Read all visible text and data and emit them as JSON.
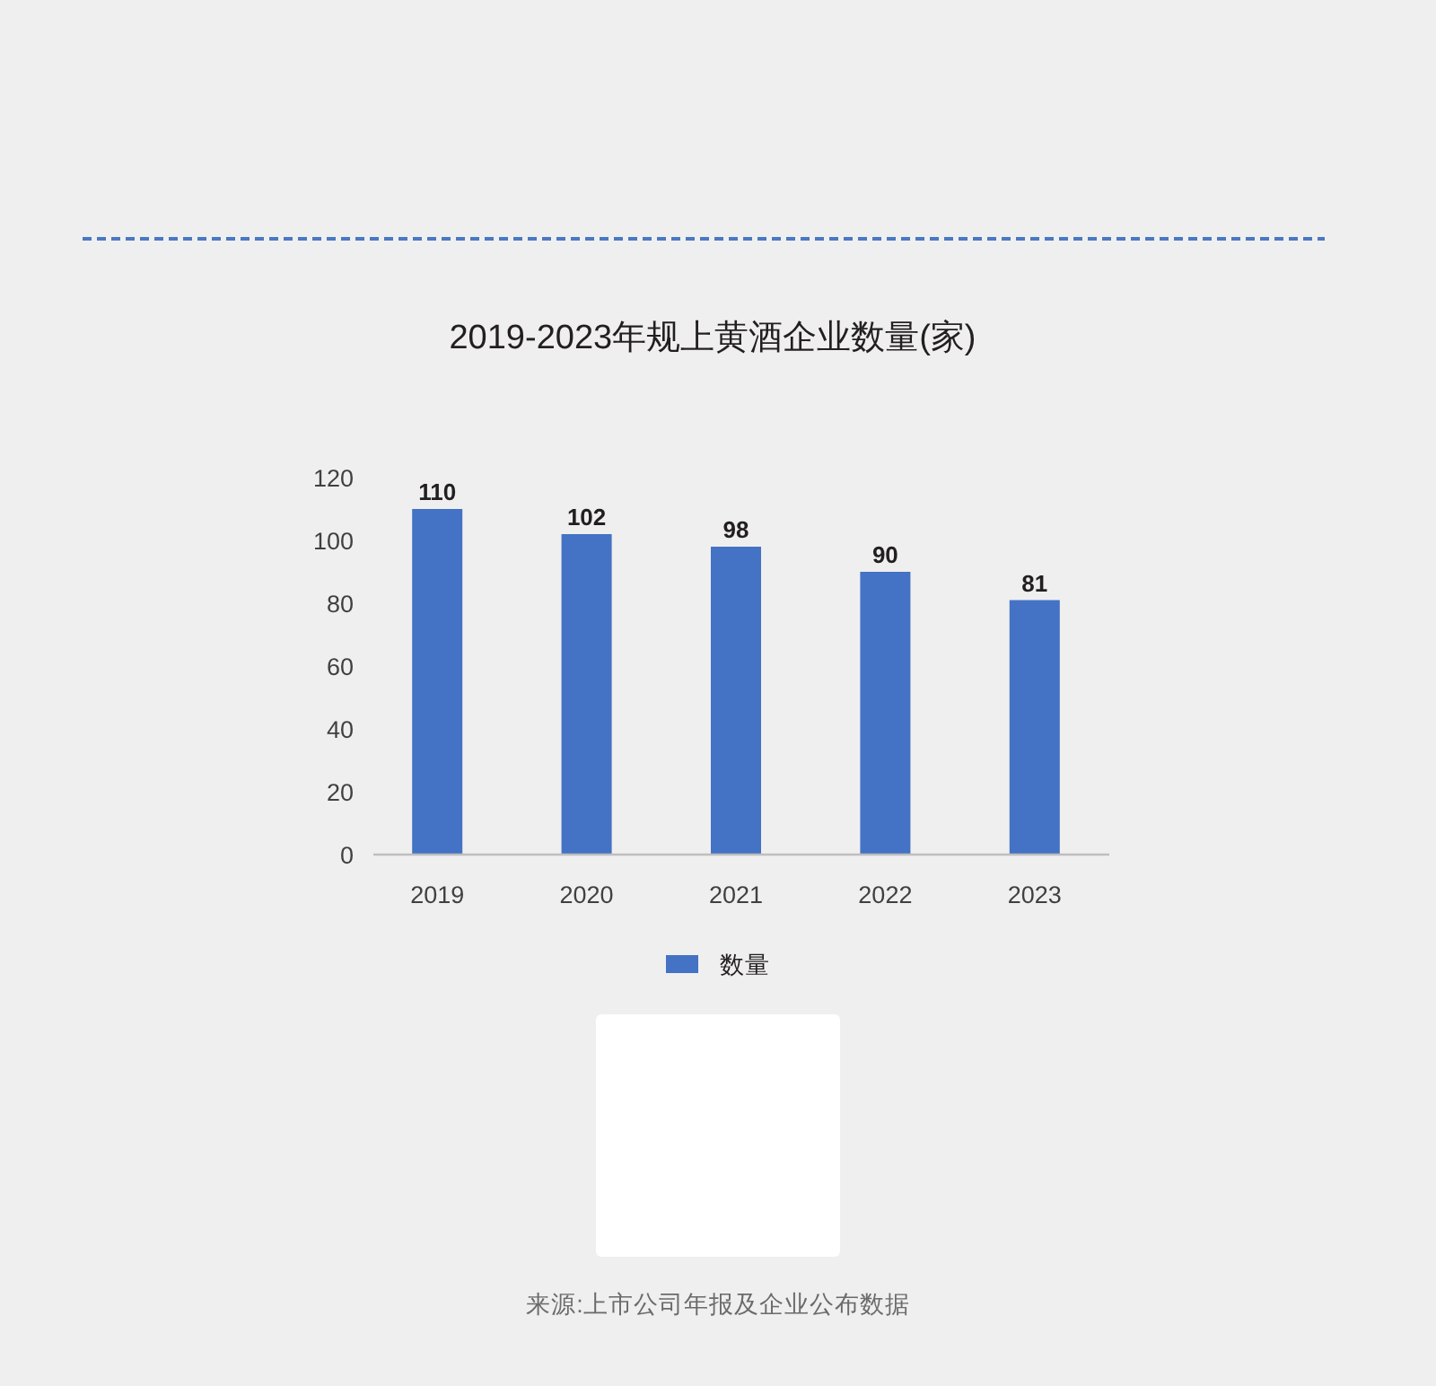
{
  "chart_data": {
    "type": "bar",
    "title": "2019-2023年规上黄酒企业数量(家)",
    "categories": [
      "2019",
      "2020",
      "2021",
      "2022",
      "2023"
    ],
    "series": [
      {
        "name": "数量",
        "color": "#4472c4",
        "values": [
          110,
          102,
          98,
          90,
          81
        ]
      }
    ],
    "ylim": [
      0,
      120
    ],
    "yticks": [
      0,
      20,
      40,
      60,
      80,
      100,
      120
    ],
    "data_labels": true,
    "legend": "bottom",
    "annotations": [
      "来源:上市公司年报及企业公布数据"
    ]
  }
}
